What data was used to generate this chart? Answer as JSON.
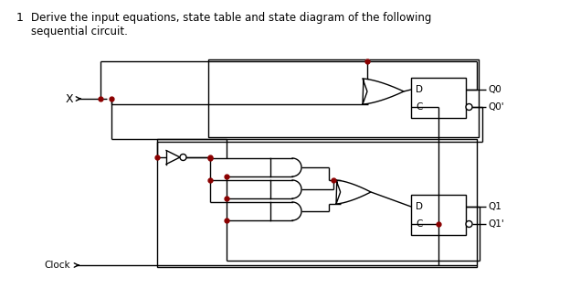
{
  "bg_color": "#ffffff",
  "line_color": "#000000",
  "dot_color": "#8b0000",
  "text_color": "#000000",
  "fig_width": 6.24,
  "fig_height": 3.27,
  "title_line1": "Derive the input equations, state table and state diagram of the following",
  "title_line2": "sequential circuit.",
  "title_num": "1"
}
